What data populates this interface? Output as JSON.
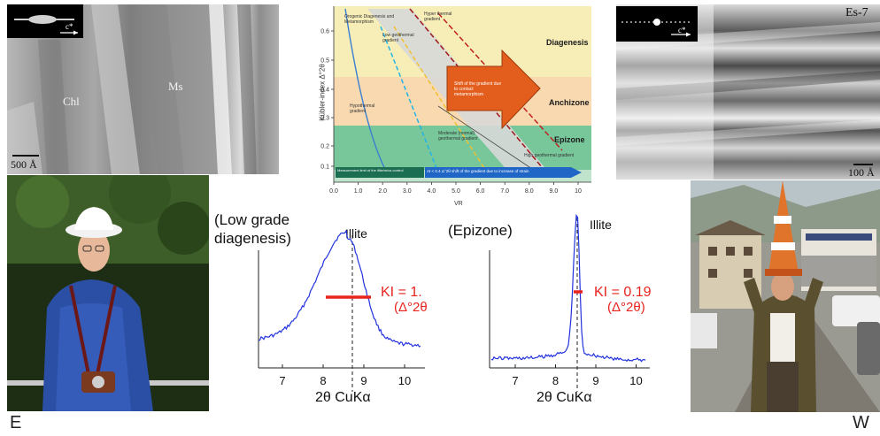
{
  "tem_left": {
    "labels": [
      "Chl",
      "Ms"
    ],
    "scale_bar": "500 Å",
    "inset_label": "c*"
  },
  "tem_right": {
    "sample": "Es-7",
    "scale_bar": "100 Å",
    "inset_label": "c*"
  },
  "diagram": {
    "y_axis_label": "Kübler-index Δ°2θ",
    "x_axis_label": "VR",
    "y_ticks": [
      "0.6",
      "0.5",
      "0.4",
      "0.3",
      "0.2",
      "0.1"
    ],
    "x_ticks": [
      "0.0",
      "1.0",
      "2.0",
      "3.0",
      "4.0",
      "5.0",
      "6.0",
      "7.0",
      "8.0",
      "9.0",
      "10"
    ],
    "zones": [
      "Diagenesis",
      "Anchizone",
      "Epizone"
    ],
    "annotations": {
      "orogenic": "Orogenic Diagenesis and Metamorphism",
      "hyper": "Hyper thermal gradient",
      "low_geo": "Low geothermal gradient",
      "shift_contact": "Shift of the gradient due to contact metamorphism",
      "hypothermal": "Hypothermal gradient",
      "moderate": "Moderate (normal) geothermal gradient",
      "high_geo": "High geothermal gradient",
      "measurement_limit": "Measurement limit of the illite/mica control",
      "strain_shift": "At < 0.4 Δ°2θ shift of the gradient due to increase of strain"
    }
  },
  "xrd_left": {
    "title": "(Low grade diagenesis)",
    "peak_label": "Illite",
    "ki_text": "KI = 1.",
    "ki_unit": "(Δ°2θ",
    "xlabel": "2θ CuKα",
    "ticks": [
      "7",
      "8",
      "9",
      "10"
    ]
  },
  "xrd_right": {
    "title": "(Epizone)",
    "peak_label": "Illite",
    "ki_text": "KI = 0.19",
    "ki_unit": "(Δ°2θ)",
    "xlabel": "2θ CuKα",
    "ticks": [
      "7",
      "8",
      "9",
      "10"
    ]
  },
  "orientation": {
    "left": "E",
    "right": "W"
  },
  "colors": {
    "xrd_line": "#2233dd",
    "ki_red": "#e8231e",
    "arrow": "#e35d1c",
    "diag_bg_top": "#f6edb7",
    "anchizone_bg": "#f8d9b0",
    "epizone_bg": "#77c79b"
  }
}
